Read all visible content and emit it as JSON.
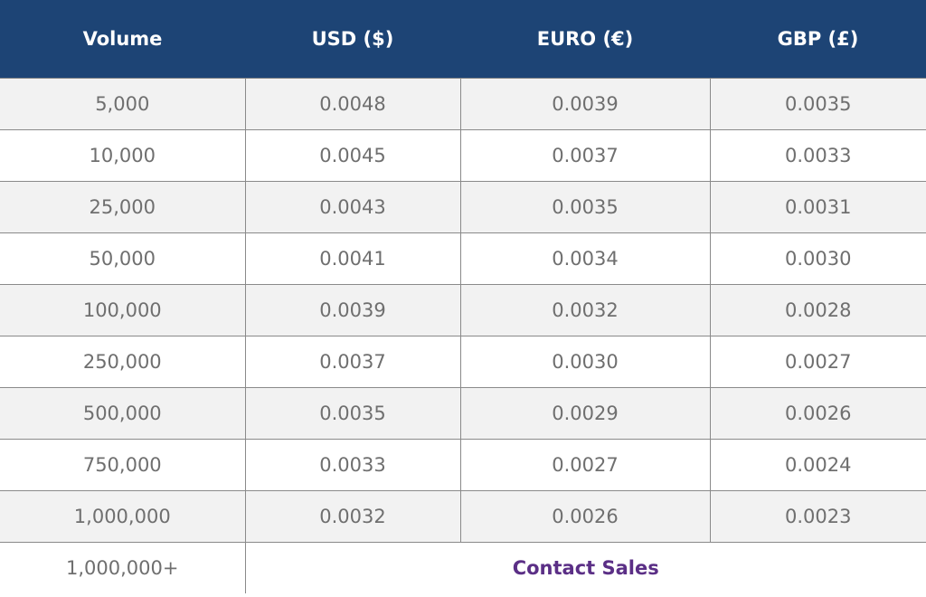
{
  "table": {
    "headers": [
      "Volume",
      "USD ($)",
      "EURO (€)",
      "GBP (£)"
    ],
    "rows": [
      [
        "5,000",
        "0.0048",
        "0.0039",
        "0.0035"
      ],
      [
        "10,000",
        "0.0045",
        "0.0037",
        "0.0033"
      ],
      [
        "25,000",
        "0.0043",
        "0.0035",
        "0.0031"
      ],
      [
        "50,000",
        "0.0041",
        "0.0034",
        "0.0030"
      ],
      [
        "100,000",
        "0.0039",
        "0.0032",
        "0.0028"
      ],
      [
        "250,000",
        "0.0037",
        "0.0030",
        "0.0027"
      ],
      [
        "500,000",
        "0.0035",
        "0.0029",
        "0.0026"
      ],
      [
        "750,000",
        "0.0033",
        "0.0027",
        "0.0024"
      ],
      [
        "1,000,000",
        "0.0032",
        "0.0026",
        "0.0023"
      ]
    ],
    "last_row": {
      "volume": "1,000,000+",
      "contact_label": "Contact Sales"
    }
  },
  "colors": {
    "header_bg": "#1d4475",
    "header_text": "#ffffff",
    "cell_text": "#6f6f6f",
    "shaded_row": "#f2f2f2",
    "contact_link": "#5b2f86",
    "border": "#8a8a8a"
  }
}
